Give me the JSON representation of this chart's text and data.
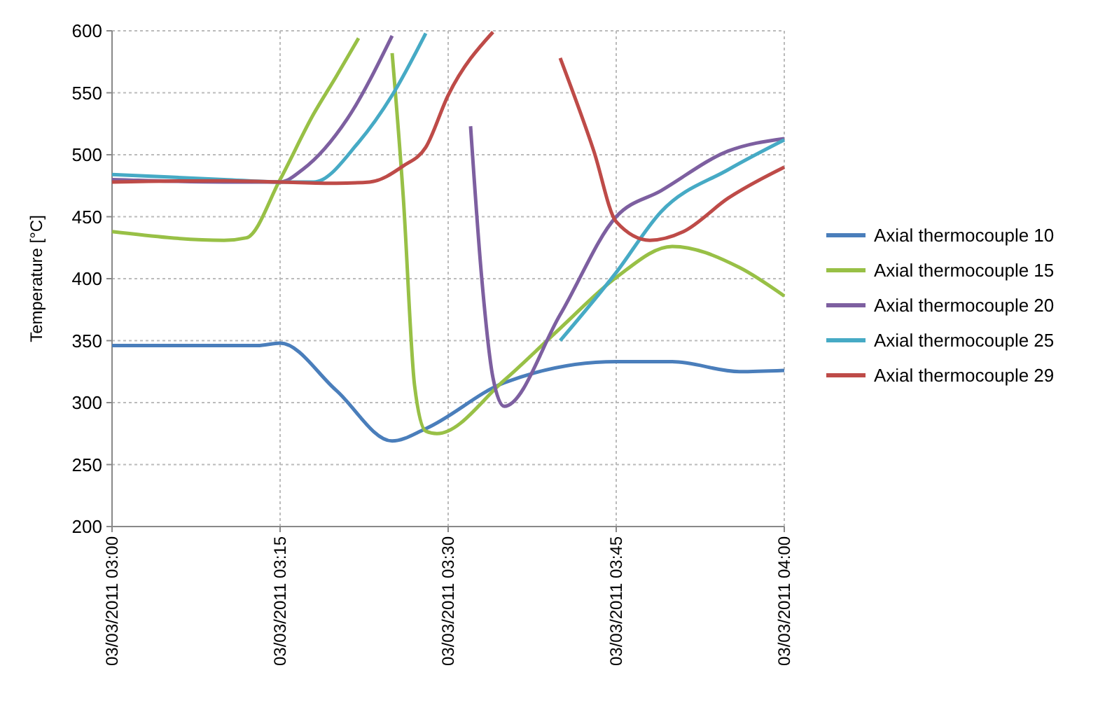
{
  "chart_data": {
    "type": "line",
    "ylabel": "Temperature [°C]",
    "ylim": [
      200,
      600
    ],
    "yticks": [
      200,
      250,
      300,
      350,
      400,
      450,
      500,
      550,
      600
    ],
    "xlim": [
      "2011-03-03T03:00",
      "2011-03-03T04:00"
    ],
    "xticks": [
      {
        "value": "2011-03-03T03:00",
        "label": "03/03/2011 03:00"
      },
      {
        "value": "2011-03-03T03:15",
        "label": "03/03/2011 03:15"
      },
      {
        "value": "2011-03-03T03:30",
        "label": "03/03/2011 03:30"
      },
      {
        "value": "2011-03-03T03:45",
        "label": "03/03/2011 03:45"
      },
      {
        "value": "2011-03-03T04:00",
        "label": "03/03/2011 04:00"
      }
    ],
    "grid": true,
    "legend": "right",
    "marker": "none",
    "line_style": "solid",
    "series": [
      {
        "name": "Axial thermocouple 10",
        "color": "#4a7ebb",
        "x": [
          "2011-03-03T03:00",
          "2011-03-03T03:13",
          "2011-03-03T03:15",
          "2011-03-03T03:20",
          "2011-03-03T03:25",
          "2011-03-03T03:28",
          "2011-03-03T03:35",
          "2011-03-03T03:45",
          "2011-03-03T03:50",
          "2011-03-03T03:56",
          "2011-03-03T04:00"
        ],
        "values": [
          346,
          346,
          348,
          310,
          269,
          279,
          316,
          333,
          333,
          325,
          326
        ]
      },
      {
        "name": "Axial thermocouple 15",
        "color": "#98c046",
        "x": [
          "2011-03-03T03:00",
          "2011-03-03T03:10",
          "2011-03-03T03:12",
          "2011-03-03T03:15",
          "2011-03-03T03:18",
          "2011-03-03T03:20",
          "2011-03-03T03:22",
          "2011-03-03T03:23",
          "2011-03-03T03:25",
          "2011-03-03T03:26",
          "2011-03-03T03:27",
          "2011-03-03T03:28",
          "2011-03-03T03:29",
          "2011-03-03T03:35",
          "2011-03-03T03:40",
          "2011-03-03T03:45",
          "2011-03-03T03:50",
          "2011-03-03T03:56",
          "2011-03-03T04:00"
        ],
        "values": [
          438,
          431,
          433,
          480,
          533,
          563,
          594,
          null,
          582,
          465,
          314,
          277,
          275,
          318,
          360,
          401,
          426,
          409,
          386
        ]
      },
      {
        "name": "Axial thermocouple 20",
        "color": "#7d5fa0",
        "x": [
          "2011-03-03T03:00",
          "2011-03-03T03:10",
          "2011-03-03T03:15",
          "2011-03-03T03:17",
          "2011-03-03T03:21",
          "2011-03-03T03:25",
          "2011-03-03T03:28",
          "2011-03-03T03:32",
          "2011-03-03T03:33",
          "2011-03-03T03:34",
          "2011-03-03T03:35",
          "2011-03-03T03:40",
          "2011-03-03T03:45",
          "2011-03-03T03:49",
          "2011-03-03T03:55",
          "2011-03-03T04:00"
        ],
        "values": [
          480,
          478,
          478,
          488,
          529,
          596,
          null,
          523,
          400,
          320,
          297,
          371,
          450,
          471,
          503,
          513
        ]
      },
      {
        "name": "Axial thermocouple 25",
        "color": "#46aac5",
        "x": [
          "2011-03-03T03:00",
          "2011-03-03T03:10",
          "2011-03-03T03:15",
          "2011-03-03T03:18",
          "2011-03-03T03:22",
          "2011-03-03T03:25",
          "2011-03-03T03:28",
          "2011-03-03T03:34",
          "2011-03-03T03:40",
          "2011-03-03T03:45",
          "2011-03-03T03:49",
          "2011-03-03T03:55",
          "2011-03-03T04:00"
        ],
        "values": [
          484,
          480,
          478,
          478,
          510,
          548,
          598,
          null,
          350,
          405,
          454,
          488,
          512
        ]
      },
      {
        "name": "Axial thermocouple 29",
        "color": "#be4b48",
        "x": [
          "2011-03-03T03:00",
          "2011-03-03T03:10",
          "2011-03-03T03:15",
          "2011-03-03T03:20",
          "2011-03-03T03:23",
          "2011-03-03T03:26",
          "2011-03-03T03:28",
          "2011-03-03T03:30",
          "2011-03-03T03:34",
          "2011-03-03T03:37",
          "2011-03-03T03:40",
          "2011-03-03T03:43",
          "2011-03-03T03:45",
          "2011-03-03T03:48",
          "2011-03-03T03:51",
          "2011-03-03T03:55",
          "2011-03-03T04:00"
        ],
        "values": [
          478,
          479,
          478,
          477,
          478,
          491,
          506,
          548,
          599,
          null,
          578,
          503,
          446,
          431,
          438,
          465,
          490
        ]
      }
    ]
  }
}
